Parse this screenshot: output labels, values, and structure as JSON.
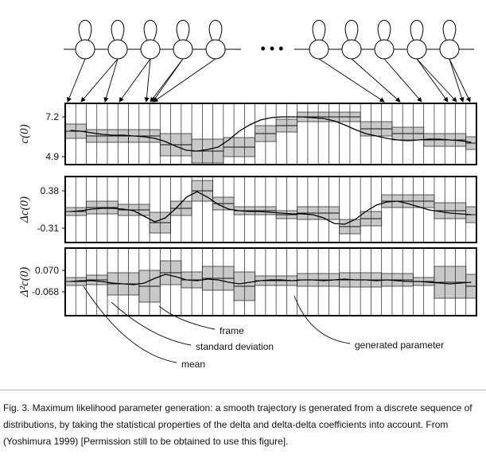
{
  "figure": {
    "panels": [
      {
        "ylabel": "c(0)",
        "ticks": [
          "7.2",
          "4.9"
        ],
        "tick_values": [
          7.2,
          4.9
        ]
      },
      {
        "ylabel": "Δc(0)",
        "ticks": [
          "0.38",
          "-0.31"
        ],
        "tick_values": [
          0.38,
          -0.31
        ]
      },
      {
        "ylabel": "Δ²c(0)",
        "ticks": [
          "0.070",
          "-0.068"
        ],
        "tick_values": [
          0.07,
          -0.068
        ]
      }
    ],
    "hmm_dots": "• • •",
    "annotations": {
      "frame": "frame",
      "std": "standard deviation",
      "mean": "mean",
      "generated": "generated parameter"
    }
  },
  "caption": "Fig. 3.  Maximum likelihood parameter generation: a smooth trajectory is generated from a discrete sequence of distributions, by taking the statistical properties of the delta and delta-delta coefficients into account. From (Yoshimura 1999) [Permission still to be obtained to use this figure]."
}
